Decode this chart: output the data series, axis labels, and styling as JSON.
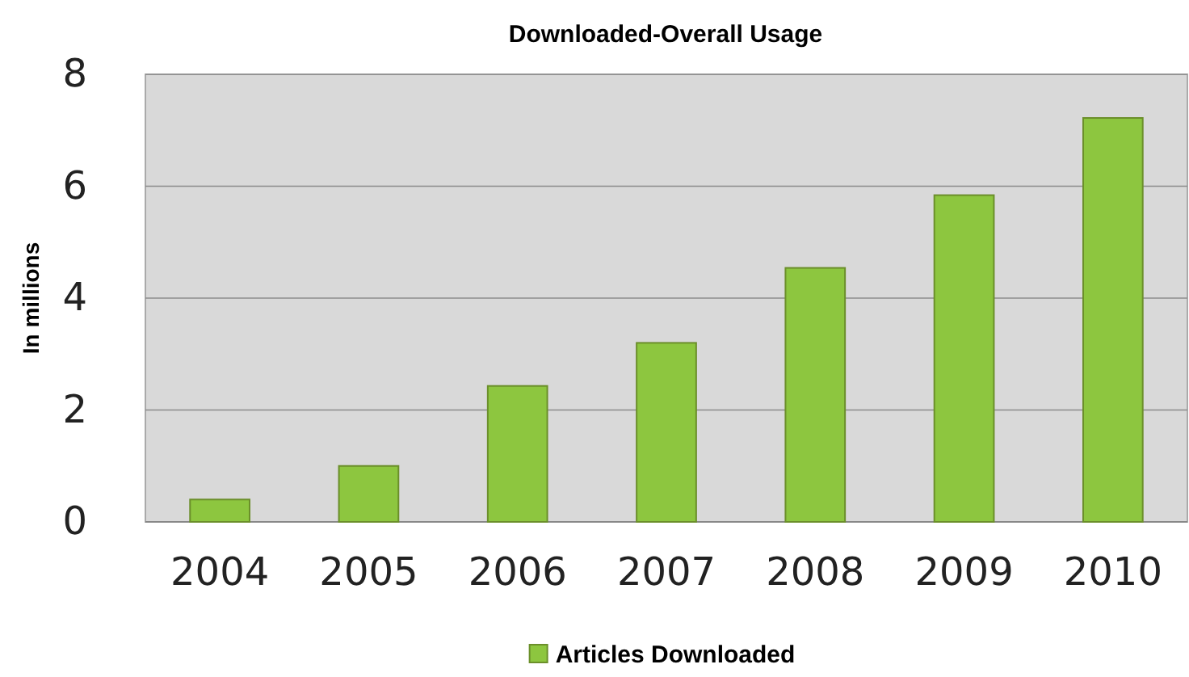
{
  "chart_data": {
    "type": "bar",
    "title": "Downloaded-Overall Usage",
    "ylabel": "In millions",
    "categories": [
      "2004",
      "2005",
      "2006",
      "2007",
      "2008",
      "2009",
      "2010"
    ],
    "series": [
      {
        "name": "Articles Downloaded",
        "color": "#8dc63f",
        "values": [
          0.4,
          1.0,
          2.43,
          3.2,
          4.54,
          5.84,
          7.22
        ]
      }
    ],
    "ylim": [
      0,
      8
    ],
    "yticks": [
      0,
      2,
      4,
      6,
      8
    ],
    "grid": "y",
    "legend": "bottom"
  }
}
